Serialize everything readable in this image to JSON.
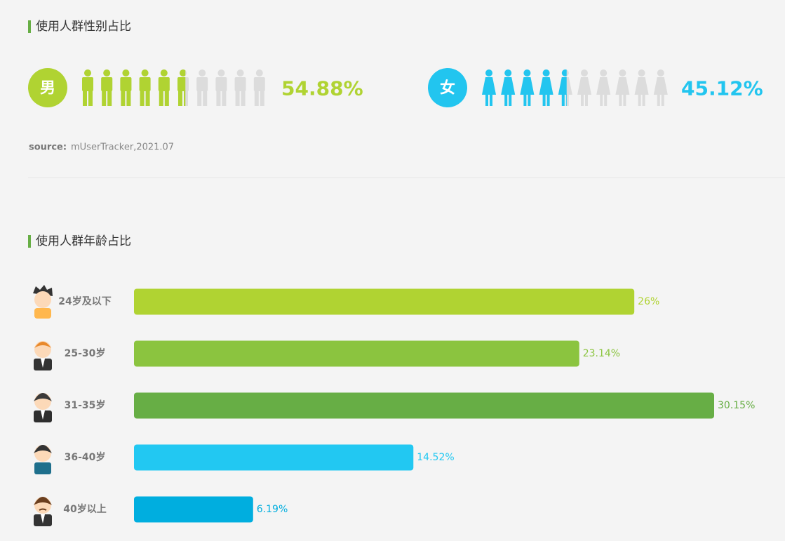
{
  "chart_data": [
    {
      "type": "pictogram",
      "title": "使用人群性别占比",
      "categories": [
        "男",
        "女"
      ],
      "values": [
        54.88,
        45.12
      ],
      "value_labels": [
        "54.88%",
        "45.12%"
      ],
      "colors": [
        "#b0d332",
        "#22c5ef"
      ],
      "source_label": "source:",
      "source": "mUserTracker,2021.07"
    },
    {
      "type": "bar",
      "orientation": "horizontal",
      "title": "使用人群年龄占比",
      "categories": [
        "24岁及以下",
        "25-30岁",
        "31-35岁",
        "36-40岁",
        "40岁以上"
      ],
      "values": [
        26,
        23.14,
        30.15,
        14.52,
        6.19
      ],
      "value_labels": [
        "26%",
        "23.14%",
        "30.15%",
        "14.52%",
        "6.19%"
      ],
      "colors": [
        "#b0d332",
        "#8bc43f",
        "#67ae45",
        "#22c8f2",
        "#00aedf"
      ]
    }
  ]
}
